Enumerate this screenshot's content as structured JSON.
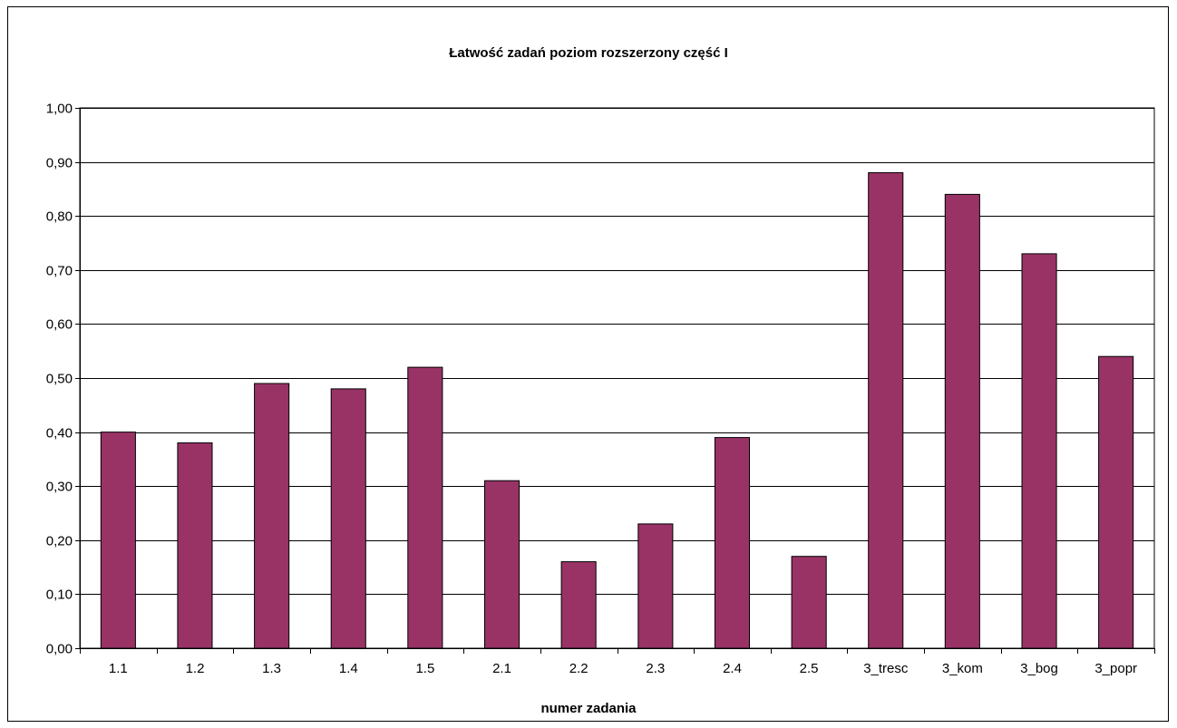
{
  "chart_data": {
    "type": "bar",
    "title": "Łatwość zadań poziom rozszerzony część I",
    "xlabel": "numer zadania",
    "ylabel": "",
    "categories": [
      "1.1",
      "1.2",
      "1.3",
      "1.4",
      "1.5",
      "2.1",
      "2.2",
      "2.3",
      "2.4",
      "2.5",
      "3_tresc",
      "3_kom",
      "3_bog",
      "3_popr"
    ],
    "values": [
      0.4,
      0.38,
      0.49,
      0.48,
      0.52,
      0.31,
      0.16,
      0.23,
      0.39,
      0.17,
      0.88,
      0.84,
      0.73,
      0.54
    ],
    "ylim": [
      0,
      1.0
    ],
    "yticks": [
      "0,00",
      "0,10",
      "0,20",
      "0,30",
      "0,40",
      "0,50",
      "0,60",
      "0,70",
      "0,80",
      "0,90",
      "1,00"
    ],
    "grid": true,
    "legend": "none",
    "bar_color": "#993366",
    "plot_background": "#ffffff"
  }
}
